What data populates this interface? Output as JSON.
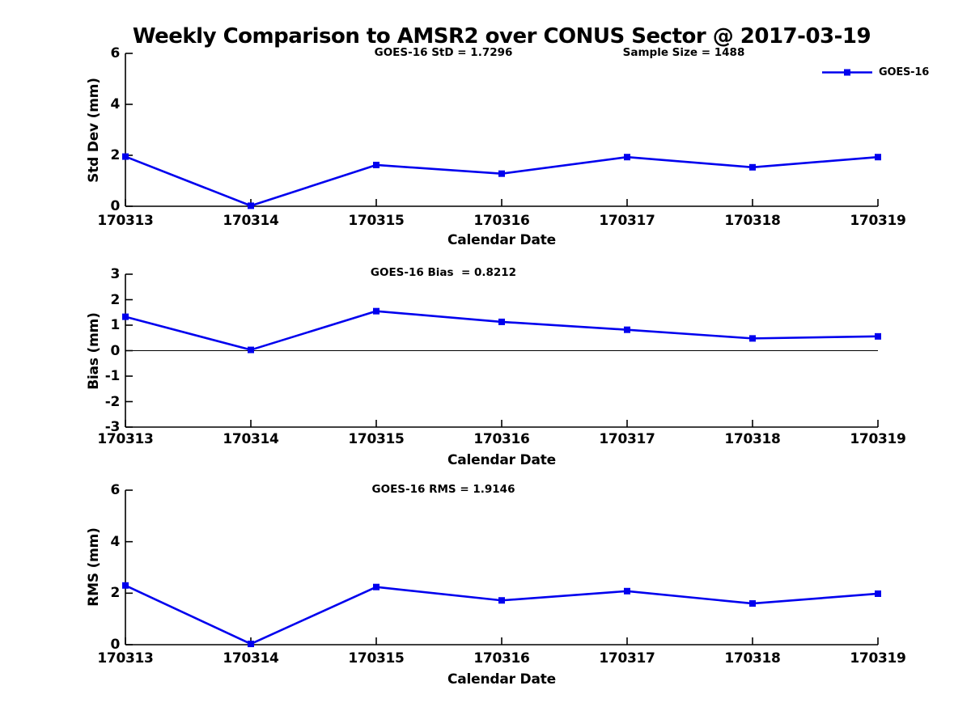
{
  "title": "Weekly Comparison to AMSR2 over CONUS Sector @ 2017-03-19",
  "legend": {
    "label": "GOES-16"
  },
  "colors": {
    "line": "#0000ee",
    "axis": "#000000",
    "background": "#ffffff"
  },
  "chart_data": [
    {
      "type": "line",
      "subplot": "Std Dev",
      "annotations": [
        "GOES-16 StD = 1.7296",
        "Sample Size = 1488"
      ],
      "xlabel": "Calendar Date",
      "ylabel": "Std Dev (mm)",
      "categories": [
        "170313",
        "170314",
        "170315",
        "170316",
        "170317",
        "170318",
        "170319"
      ],
      "series": [
        {
          "name": "GOES-16",
          "values": [
            1.95,
            0.02,
            1.62,
            1.28,
            1.93,
            1.53,
            1.93
          ]
        }
      ],
      "ylim": [
        0,
        6
      ],
      "yticks": [
        0,
        2,
        4,
        6
      ],
      "zero_line": false,
      "grid": false,
      "legend_position": "top-right"
    },
    {
      "type": "line",
      "subplot": "Bias",
      "annotations": [
        "GOES-16 Bias  = 0.8212"
      ],
      "xlabel": "Calendar Date",
      "ylabel": "Bias (mm)",
      "categories": [
        "170313",
        "170314",
        "170315",
        "170316",
        "170317",
        "170318",
        "170319"
      ],
      "series": [
        {
          "name": "GOES-16",
          "values": [
            1.33,
            0.03,
            1.55,
            1.13,
            0.82,
            0.48,
            0.56
          ]
        }
      ],
      "ylim": [
        -3,
        3
      ],
      "yticks": [
        -3,
        -2,
        -1,
        0,
        1,
        2,
        3
      ],
      "zero_line": true,
      "grid": false
    },
    {
      "type": "line",
      "subplot": "RMS",
      "annotations": [
        "GOES-16 RMS = 1.9146"
      ],
      "xlabel": "Calendar Date",
      "ylabel": "RMS (mm)",
      "categories": [
        "170313",
        "170314",
        "170315",
        "170316",
        "170317",
        "170318",
        "170319"
      ],
      "series": [
        {
          "name": "GOES-16",
          "values": [
            2.3,
            0.03,
            2.24,
            1.72,
            2.08,
            1.6,
            1.98
          ]
        }
      ],
      "ylim": [
        0,
        6
      ],
      "yticks": [
        0,
        2,
        4,
        6
      ],
      "zero_line": false,
      "grid": false
    }
  ]
}
